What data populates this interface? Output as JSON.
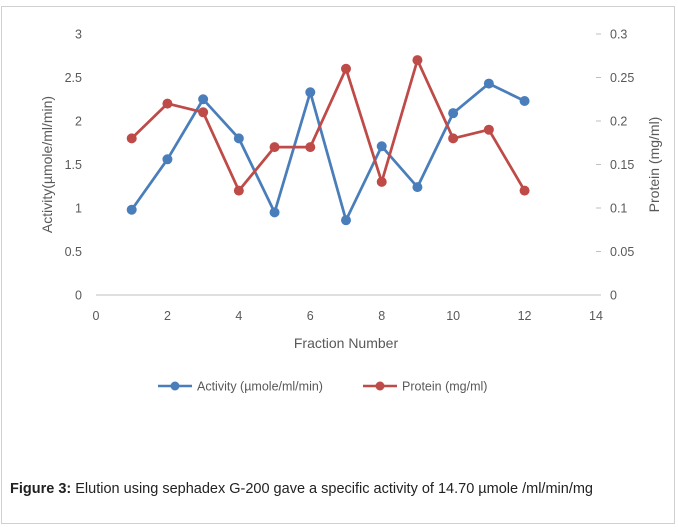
{
  "chart_data": {
    "type": "line",
    "xlabel": "Fraction Number",
    "ylabel_left": "Activity(µmole/ml/min)",
    "ylabel_right": "Protein (mg/ml)",
    "xlim": [
      0,
      14
    ],
    "x_ticks": [
      "0",
      "2",
      "4",
      "6",
      "8",
      "10",
      "12",
      "14"
    ],
    "ylim_left": [
      0,
      3
    ],
    "y_ticks_left": [
      "0",
      "0.5",
      "1",
      "1.5",
      "2",
      "2.5",
      "3"
    ],
    "ylim_right": [
      0,
      0.3
    ],
    "y_ticks_right": [
      "0",
      "0.05",
      "0.1",
      "0.15",
      "0.2",
      "0.25",
      "0.3"
    ],
    "legend_position": "bottom",
    "grid": false,
    "series": [
      {
        "name": "Activity (µmole/ml/min)",
        "axis": "left",
        "color": "#4a7ebb",
        "x": [
          1,
          2,
          3,
          4,
          5,
          6,
          7,
          8,
          9,
          10,
          11,
          12
        ],
        "y": [
          0.98,
          1.56,
          2.25,
          1.8,
          0.95,
          2.33,
          0.86,
          1.71,
          1.24,
          2.09,
          2.43,
          2.23
        ]
      },
      {
        "name": "Protein (mg/ml)",
        "axis": "right",
        "color": "#be4b48",
        "x": [
          1,
          2,
          3,
          4,
          5,
          6,
          7,
          8,
          9,
          10,
          11,
          12
        ],
        "y": [
          0.18,
          0.22,
          0.21,
          0.12,
          0.17,
          0.17,
          0.26,
          0.13,
          0.27,
          0.18,
          0.19,
          0.12
        ]
      }
    ]
  },
  "caption": {
    "label": "Figure 3:",
    "text": " Elution using sephadex G-200 gave a specific activity of 14.70 µmole /ml/min/mg"
  }
}
